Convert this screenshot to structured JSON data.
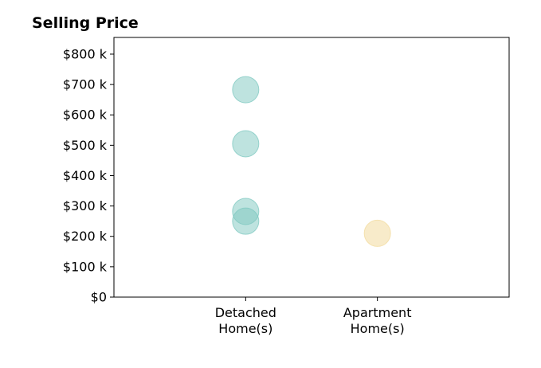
{
  "chart_data": {
    "type": "scatter",
    "title": "Selling Price",
    "xlabel": "",
    "ylabel": "",
    "categories": [
      "Detached Home(s)",
      "Apartment Home(s)"
    ],
    "category_tick_lines": [
      [
        "Detached",
        "Home(s)"
      ],
      [
        "Apartment",
        "Home(s)"
      ]
    ],
    "x_range": [
      -1,
      2
    ],
    "ylim": [
      0,
      855
    ],
    "y_ticks": [
      0,
      100,
      200,
      300,
      400,
      500,
      600,
      700,
      800
    ],
    "y_tick_labels": [
      "$0",
      "$100 k",
      "$200 k",
      "$300 k",
      "$400 k",
      "$500 k",
      "$600 k",
      "$700 k",
      "$800 k"
    ],
    "y_unit": "thousand dollars",
    "grid": false,
    "legend": "none",
    "series": [
      {
        "category_index": 0,
        "color": "#7ec8c0",
        "opacity": 0.5,
        "y": [
          683,
          505,
          282,
          250
        ]
      },
      {
        "category_index": 1,
        "color": "#f3dea6",
        "opacity": 0.6,
        "y": [
          210
        ]
      }
    ]
  }
}
